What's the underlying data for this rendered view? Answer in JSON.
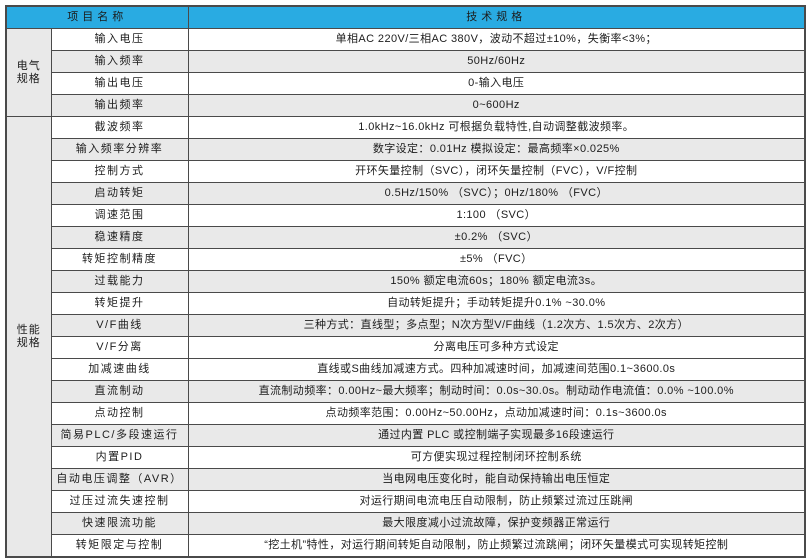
{
  "colors": {
    "header_bg": "#29abe2",
    "header_text": "#ffffff",
    "shaded_row": "#e9e9e9",
    "border": "#4a4a4a"
  },
  "table": {
    "header": {
      "item": "项目名称",
      "spec": "技术规格"
    },
    "groups": [
      {
        "id": "electrical",
        "label": "电气\n规格",
        "row_count": 4
      },
      {
        "id": "performance",
        "label": "性能\n规格",
        "row_count": 20
      }
    ],
    "rows": [
      {
        "label": "输入电压",
        "value": "单相AC 220V/三相AC 380V，波动不超过±10%，失衡率<3%；",
        "shaded": false,
        "group_start": 0
      },
      {
        "label": "输入频率",
        "value": "50Hz/60Hz",
        "shaded": true
      },
      {
        "label": "输出电压",
        "value": "0-输入电压",
        "shaded": false
      },
      {
        "label": "输出频率",
        "value": "0~600Hz",
        "shaded": true
      },
      {
        "label": "截波频率",
        "value": "1.0kHz~16.0kHz 可根据负载特性,自动调整截波频率。",
        "shaded": false,
        "group_start": 1
      },
      {
        "label": "输入频率分辨率",
        "value": "数字设定：0.01Hz 模拟设定：最高频率×0.025%",
        "shaded": true
      },
      {
        "label": "控制方式",
        "value": "开环矢量控制（SVC），闭环矢量控制（FVC），V/F控制",
        "shaded": false
      },
      {
        "label": "启动转矩",
        "value": "0.5Hz/150% （SVC）；0Hz/180% （FVC）",
        "shaded": true
      },
      {
        "label": "调速范围",
        "value": "1:100 （SVC）",
        "shaded": false
      },
      {
        "label": "稳速精度",
        "value": "±0.2% （SVC）",
        "shaded": true
      },
      {
        "label": "转矩控制精度",
        "value": "±5% （FVC）",
        "shaded": false
      },
      {
        "label": "过载能力",
        "value": "150% 额定电流60s；180% 额定电流3s。",
        "shaded": true
      },
      {
        "label": "转矩提升",
        "value": "自动转矩提升；手动转矩提升0.1% ~30.0%",
        "shaded": false
      },
      {
        "label": "V/F曲线",
        "value": "三种方式：直线型；多点型；N次方型V/F曲线（1.2次方、1.5次方、2次方）",
        "shaded": true
      },
      {
        "label": "V/F分离",
        "value": "分离电压可多种方式设定",
        "shaded": false
      },
      {
        "label": "加减速曲线",
        "value": "直线或S曲线加减速方式。四种加减速时间，加减速间范围0.1~3600.0s",
        "shaded": false
      },
      {
        "label": "直流制动",
        "value": "直流制动频率：0.00Hz~最大频率；制动时间：0.0s~30.0s。制动动作电流值：0.0% ~100.0%",
        "shaded": true
      },
      {
        "label": "点动控制",
        "value": "点动频率范围：0.00Hz~50.00Hz，点动加减速时间：0.1s~3600.0s",
        "shaded": false
      },
      {
        "label": "简易PLC/多段速运行",
        "value": "通过内置 PLC 或控制端子实现最多16段速运行",
        "shaded": true
      },
      {
        "label": "内置PID",
        "value": "可方便实现过程控制闭环控制系统",
        "shaded": false
      },
      {
        "label": "自动电压调整（AVR）",
        "value": "当电网电压变化时，能自动保持输出电压恒定",
        "shaded": true
      },
      {
        "label": "过压过流失速控制",
        "value": "对运行期间电流电压自动限制，防止频繁过流过压跳闸",
        "shaded": false
      },
      {
        "label": "快速限流功能",
        "value": "最大限度减小过流故障，保护变频器正常运行",
        "shaded": true
      },
      {
        "label": "转矩限定与控制",
        "value": "“挖土机”特性，对运行期间转矩自动限制，防止频繁过流跳闸；闭环矢量模式可实现转矩控制",
        "shaded": false
      }
    ]
  }
}
